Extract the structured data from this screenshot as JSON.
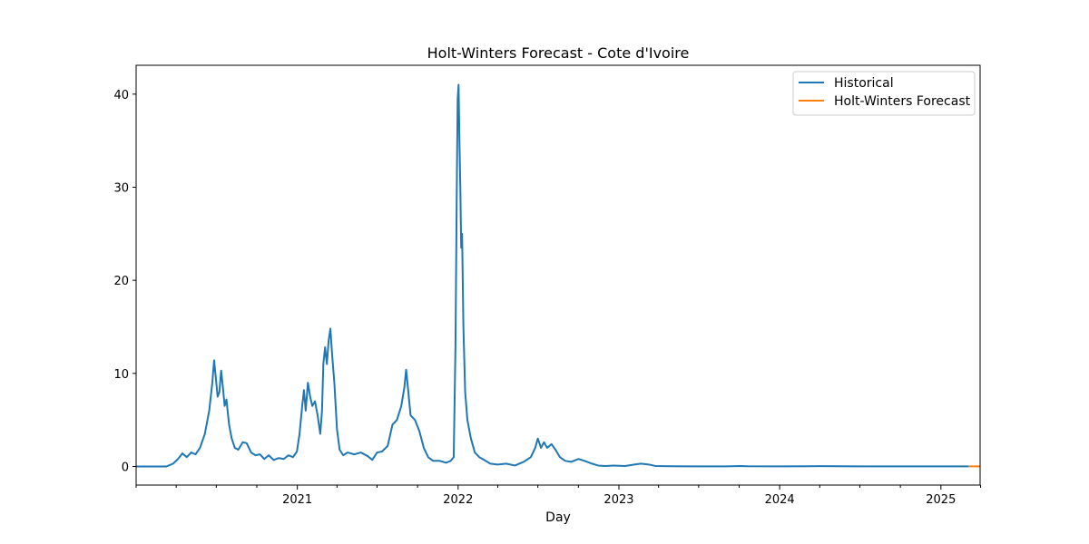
{
  "chart_data": {
    "type": "line",
    "title": "Holt-Winters Forecast - Cote d'Ivoire",
    "xlabel": "Day",
    "ylabel": "",
    "xlim": [
      "2020-01-01",
      "2025-03-31"
    ],
    "ylim": [
      -2.0,
      43.1
    ],
    "y_ticks": [
      0,
      10,
      20,
      30,
      40
    ],
    "x_ticks": [
      "2021",
      "2022",
      "2023",
      "2024",
      "2025"
    ],
    "x_tick_dates": [
      "2021-01-01",
      "2022-01-01",
      "2023-01-01",
      "2024-01-01",
      "2025-01-01"
    ],
    "x_minor_ticks": [
      "2020-01-01",
      "2020-04-01",
      "2020-07-01",
      "2020-10-01",
      "2021-04-01",
      "2021-07-01",
      "2021-10-01",
      "2022-04-01",
      "2022-07-01",
      "2022-10-01",
      "2023-04-01",
      "2023-07-01",
      "2023-10-01",
      "2024-04-01",
      "2024-07-01",
      "2024-10-01",
      "2025-04-01"
    ],
    "grid": false,
    "legend_position": "top-right",
    "series": [
      {
        "name": "Historical",
        "color": "#1f77b4",
        "points": [
          [
            "2020-01-01",
            0
          ],
          [
            "2020-03-10",
            0
          ],
          [
            "2020-03-25",
            0.3
          ],
          [
            "2020-04-05",
            0.8
          ],
          [
            "2020-04-15",
            1.4
          ],
          [
            "2020-04-25",
            1.0
          ],
          [
            "2020-05-05",
            1.5
          ],
          [
            "2020-05-15",
            1.3
          ],
          [
            "2020-05-25",
            2.0
          ],
          [
            "2020-06-05",
            3.5
          ],
          [
            "2020-06-15",
            6.0
          ],
          [
            "2020-06-22",
            9.0
          ],
          [
            "2020-06-26",
            11.4
          ],
          [
            "2020-06-30",
            9.5
          ],
          [
            "2020-07-04",
            7.5
          ],
          [
            "2020-07-08",
            8.0
          ],
          [
            "2020-07-12",
            10.3
          ],
          [
            "2020-07-16",
            8.5
          ],
          [
            "2020-07-20",
            6.5
          ],
          [
            "2020-07-24",
            7.2
          ],
          [
            "2020-07-30",
            4.5
          ],
          [
            "2020-08-05",
            3.0
          ],
          [
            "2020-08-12",
            2.0
          ],
          [
            "2020-08-20",
            1.8
          ],
          [
            "2020-08-30",
            2.6
          ],
          [
            "2020-09-08",
            2.5
          ],
          [
            "2020-09-18",
            1.5
          ],
          [
            "2020-09-28",
            1.2
          ],
          [
            "2020-10-08",
            1.3
          ],
          [
            "2020-10-18",
            0.8
          ],
          [
            "2020-10-28",
            1.2
          ],
          [
            "2020-11-08",
            0.7
          ],
          [
            "2020-11-20",
            0.9
          ],
          [
            "2020-12-01",
            0.8
          ],
          [
            "2020-12-12",
            1.2
          ],
          [
            "2020-12-22",
            1.0
          ],
          [
            "2020-12-31",
            1.6
          ],
          [
            "2021-01-06",
            3.5
          ],
          [
            "2021-01-12",
            6.5
          ],
          [
            "2021-01-16",
            8.2
          ],
          [
            "2021-01-20",
            6.0
          ],
          [
            "2021-01-25",
            9.0
          ],
          [
            "2021-01-30",
            7.5
          ],
          [
            "2021-02-04",
            6.5
          ],
          [
            "2021-02-10",
            7.0
          ],
          [
            "2021-02-16",
            5.5
          ],
          [
            "2021-02-22",
            3.5
          ],
          [
            "2021-02-26",
            6.0
          ],
          [
            "2021-03-01",
            11.0
          ],
          [
            "2021-03-05",
            12.8
          ],
          [
            "2021-03-09",
            11.0
          ],
          [
            "2021-03-13",
            13.5
          ],
          [
            "2021-03-17",
            14.8
          ],
          [
            "2021-03-21",
            12.0
          ],
          [
            "2021-03-26",
            9.0
          ],
          [
            "2021-04-01",
            4.0
          ],
          [
            "2021-04-07",
            1.8
          ],
          [
            "2021-04-15",
            1.2
          ],
          [
            "2021-04-25",
            1.5
          ],
          [
            "2021-05-10",
            1.3
          ],
          [
            "2021-05-25",
            1.5
          ],
          [
            "2021-06-10",
            1.1
          ],
          [
            "2021-06-20",
            0.7
          ],
          [
            "2021-07-01",
            1.5
          ],
          [
            "2021-07-12",
            1.6
          ],
          [
            "2021-07-25",
            2.2
          ],
          [
            "2021-08-05",
            4.5
          ],
          [
            "2021-08-15",
            5.0
          ],
          [
            "2021-08-25",
            6.5
          ],
          [
            "2021-09-01",
            8.5
          ],
          [
            "2021-09-05",
            10.4
          ],
          [
            "2021-09-10",
            8.0
          ],
          [
            "2021-09-15",
            5.5
          ],
          [
            "2021-09-25",
            5.0
          ],
          [
            "2021-10-05",
            3.8
          ],
          [
            "2021-10-15",
            2.0
          ],
          [
            "2021-10-25",
            1.0
          ],
          [
            "2021-11-05",
            0.6
          ],
          [
            "2021-11-20",
            0.6
          ],
          [
            "2021-12-05",
            0.4
          ],
          [
            "2021-12-15",
            0.6
          ],
          [
            "2021-12-22",
            1.0
          ],
          [
            "2021-12-26",
            13.0
          ],
          [
            "2021-12-29",
            30.0
          ],
          [
            "2021-12-31",
            39.5
          ],
          [
            "2022-01-02",
            41.0
          ],
          [
            "2022-01-04",
            35.0
          ],
          [
            "2022-01-06",
            30.0
          ],
          [
            "2022-01-08",
            23.5
          ],
          [
            "2022-01-10",
            25.0
          ],
          [
            "2022-01-13",
            15.0
          ],
          [
            "2022-01-17",
            8.0
          ],
          [
            "2022-01-22",
            5.0
          ],
          [
            "2022-01-30",
            3.0
          ],
          [
            "2022-02-08",
            1.5
          ],
          [
            "2022-02-18",
            1.0
          ],
          [
            "2022-03-01",
            0.7
          ],
          [
            "2022-03-15",
            0.3
          ],
          [
            "2022-04-01",
            0.2
          ],
          [
            "2022-04-20",
            0.3
          ],
          [
            "2022-05-10",
            0.1
          ],
          [
            "2022-05-30",
            0.5
          ],
          [
            "2022-06-15",
            1.0
          ],
          [
            "2022-06-25",
            2.0
          ],
          [
            "2022-07-01",
            3.0
          ],
          [
            "2022-07-08",
            2.0
          ],
          [
            "2022-07-15",
            2.6
          ],
          [
            "2022-07-22",
            2.0
          ],
          [
            "2022-08-01",
            2.4
          ],
          [
            "2022-08-10",
            1.8
          ],
          [
            "2022-08-20",
            1.0
          ],
          [
            "2022-09-01",
            0.6
          ],
          [
            "2022-09-15",
            0.5
          ],
          [
            "2022-10-01",
            0.8
          ],
          [
            "2022-10-15",
            0.6
          ],
          [
            "2022-11-01",
            0.3
          ],
          [
            "2022-11-15",
            0.1
          ],
          [
            "2022-12-01",
            0.05
          ],
          [
            "2022-12-20",
            0.1
          ],
          [
            "2023-01-15",
            0.05
          ],
          [
            "2023-02-05",
            0.2
          ],
          [
            "2023-02-20",
            0.3
          ],
          [
            "2023-03-10",
            0.2
          ],
          [
            "2023-03-25",
            0.05
          ],
          [
            "2023-05-01",
            0.02
          ],
          [
            "2023-07-01",
            0.01
          ],
          [
            "2023-09-01",
            0.01
          ],
          [
            "2023-10-05",
            0.05
          ],
          [
            "2023-10-20",
            0.02
          ],
          [
            "2024-01-01",
            0.01
          ],
          [
            "2024-04-01",
            0.03
          ],
          [
            "2024-07-01",
            0.01
          ],
          [
            "2025-01-01",
            0.01
          ],
          [
            "2025-03-05",
            0.01
          ]
        ]
      },
      {
        "name": "Holt-Winters Forecast",
        "color": "#ff7f0e",
        "points": [
          [
            "2025-03-05",
            0.01
          ],
          [
            "2025-03-31",
            0.01
          ]
        ]
      }
    ]
  }
}
